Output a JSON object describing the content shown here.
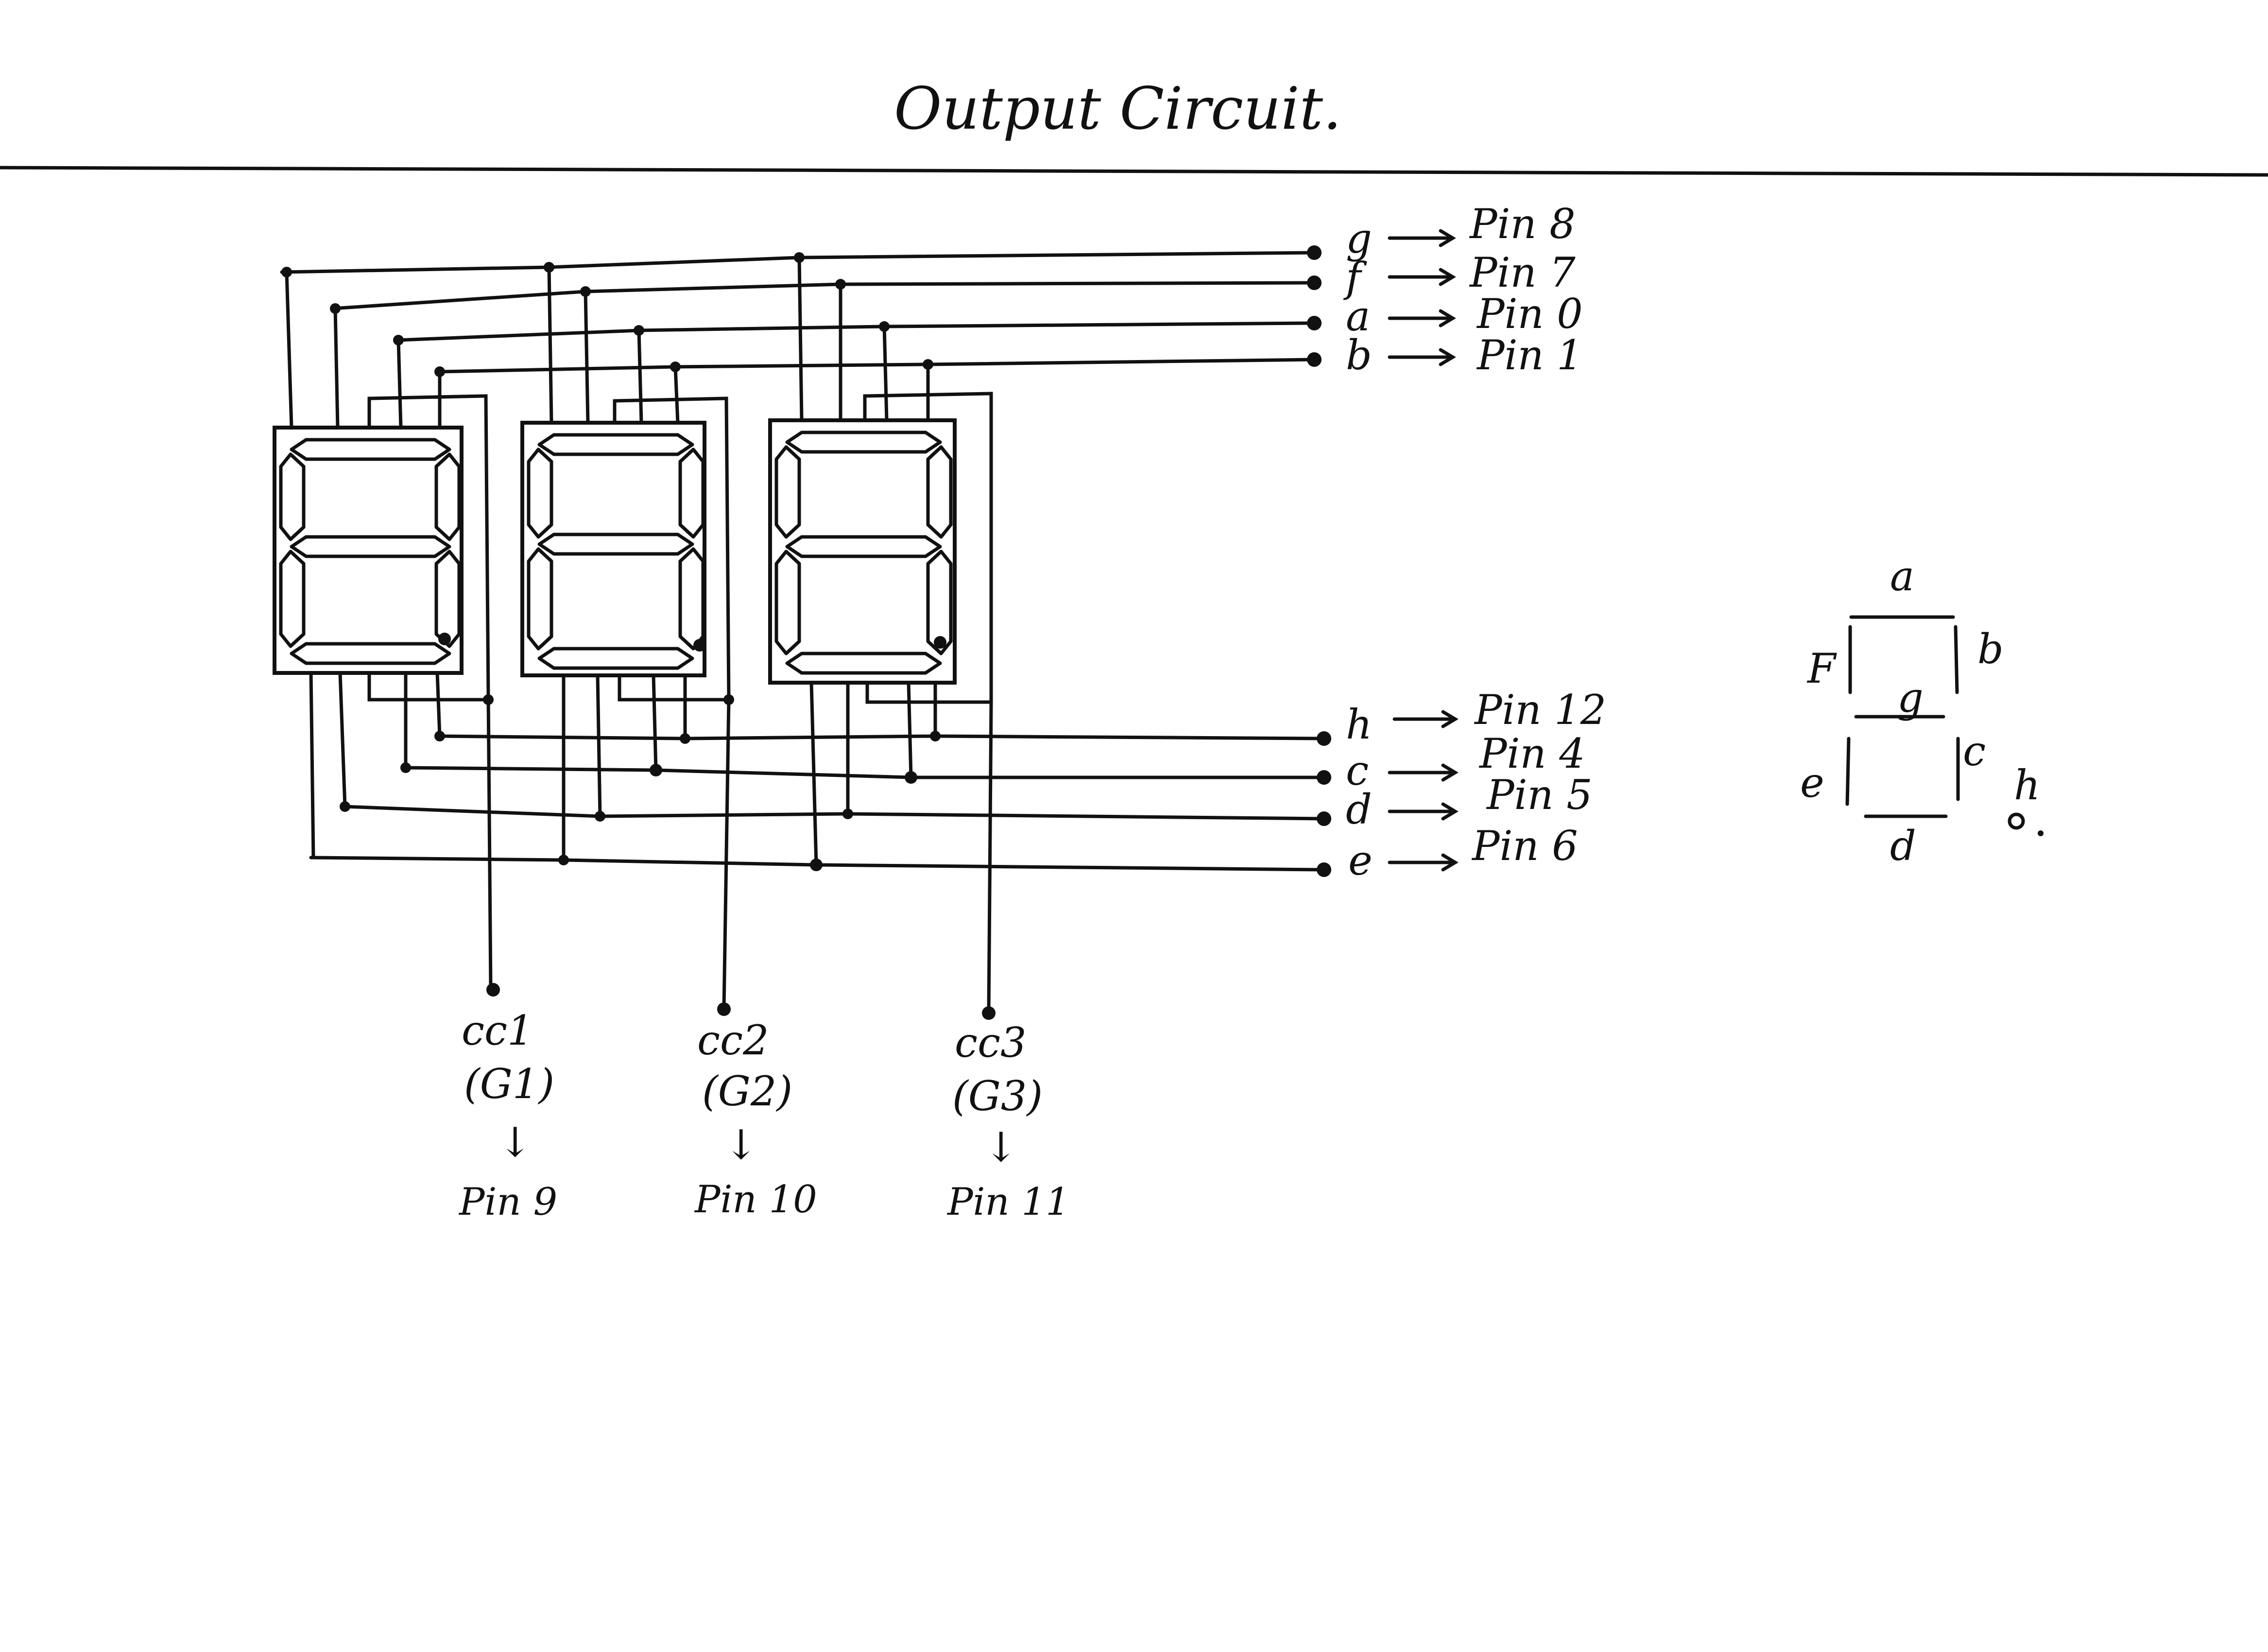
{
  "title": "Output Circuit.",
  "top_signals": [
    {
      "segment": "g",
      "pin": "Pin 8"
    },
    {
      "segment": "f",
      "pin": "Pin 7"
    },
    {
      "segment": "a",
      "pin": "Pin 0"
    },
    {
      "segment": "b",
      "pin": "Pin 1"
    }
  ],
  "bottom_signals": [
    {
      "segment": "h",
      "pin": "Pin 12"
    },
    {
      "segment": "c",
      "pin": "Pin 4"
    },
    {
      "segment": "d",
      "pin": "Pin 5"
    },
    {
      "segment": "e",
      "pin": "Pin 6"
    }
  ],
  "commons": [
    {
      "name": "cc1",
      "gnd": "(G1)",
      "pin": "Pin 9"
    },
    {
      "name": "cc2",
      "gnd": "(G2)",
      "pin": "Pin 10"
    },
    {
      "name": "cc3",
      "gnd": "(G3)",
      "pin": "Pin 11"
    }
  ],
  "arrow_symbol": "↓",
  "legend": {
    "a": "a",
    "b": "b",
    "c": "c",
    "d": "d",
    "e": "e",
    "f": "F",
    "g": "g",
    "h": "h"
  },
  "color_ink": "#111111"
}
